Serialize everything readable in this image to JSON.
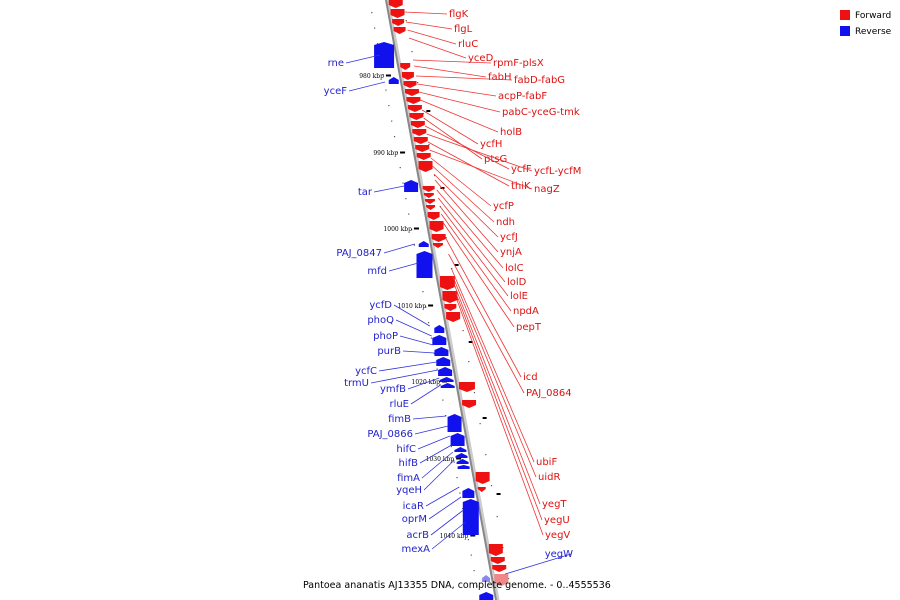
{
  "legend": [
    {
      "label": "Forward",
      "color": "#ee1111"
    },
    {
      "label": "Reverse",
      "color": "#1111ee"
    }
  ],
  "caption": "Pantoea ananatis AJ13355 DNA, complete genome. - 0..4555536",
  "colors": {
    "backbone": "#888888",
    "forward_leader": "#ee3333",
    "reverse_leader": "#3333dd"
  },
  "scale_marks": [
    {
      "label": "980 kbp"
    },
    {
      "label": "990 kbp"
    },
    {
      "label": "1000 kbp"
    },
    {
      "label": "1010 kbp"
    },
    {
      "label": "1020 kbp"
    },
    {
      "label": "1030 kbp"
    },
    {
      "label": "1040 kbp"
    }
  ],
  "forward_genes": [
    "flgK",
    "flgL",
    "rluC",
    "yceD",
    "rpmF-plsX",
    "fabH",
    "fabD-fabG",
    "acpP-fabF",
    "pabC-yceG-tmk",
    "holB",
    "ycfH",
    "ptsG",
    "ycfF",
    "ycfL-ycfM",
    "thiK",
    "nagZ",
    "ycfP",
    "ndh",
    "ycfJ",
    "ynjA",
    "lolC",
    "lolD",
    "lolE",
    "npdA",
    "pepT",
    "icd",
    "PAJ_0864",
    "ubiF",
    "uidR",
    "yegT",
    "yegU",
    "yegV"
  ],
  "reverse_genes": [
    "rne",
    "yceF",
    "tar",
    "PAJ_0847",
    "mfd",
    "ycfD",
    "phoQ",
    "phoP",
    "purB",
    "ycfC",
    "trmU",
    "ymfB",
    "rluE",
    "fimB",
    "PAJ_0866",
    "hifC",
    "hifB",
    "fimA",
    "yqeH",
    "icaR",
    "oprM",
    "acrB",
    "mexA",
    "yegW"
  ]
}
